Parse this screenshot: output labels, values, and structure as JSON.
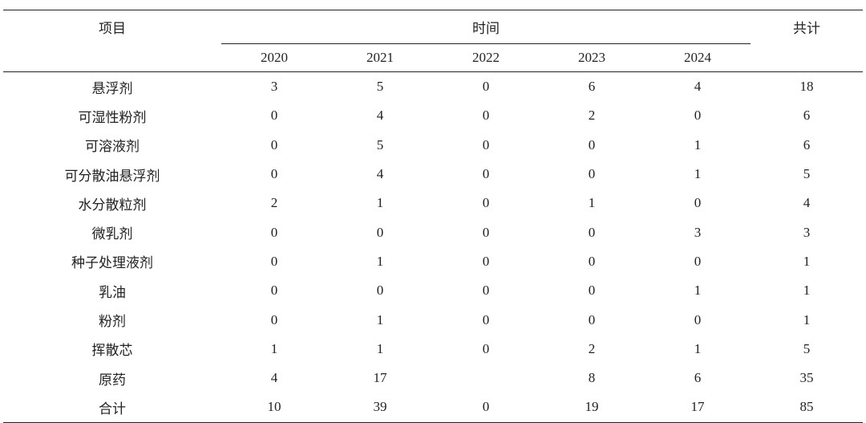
{
  "header": {
    "item_label": "项目",
    "time_label": "时间",
    "total_label": "共计",
    "years": [
      "2020",
      "2021",
      "2022",
      "2023",
      "2024"
    ]
  },
  "rows": [
    {
      "item": "悬浮剂",
      "values": [
        "3",
        "5",
        "0",
        "6",
        "4"
      ],
      "total": "18"
    },
    {
      "item": "可湿性粉剂",
      "values": [
        "0",
        "4",
        "0",
        "2",
        "0"
      ],
      "total": "6"
    },
    {
      "item": "可溶液剂",
      "values": [
        "0",
        "5",
        "0",
        "0",
        "1"
      ],
      "total": "6"
    },
    {
      "item": "可分散油悬浮剂",
      "values": [
        "0",
        "4",
        "0",
        "0",
        "1"
      ],
      "total": "5"
    },
    {
      "item": "水分散粒剂",
      "values": [
        "2",
        "1",
        "0",
        "1",
        "0"
      ],
      "total": "4"
    },
    {
      "item": "微乳剂",
      "values": [
        "0",
        "0",
        "0",
        "0",
        "3"
      ],
      "total": "3"
    },
    {
      "item": "种子处理液剂",
      "values": [
        "0",
        "1",
        "0",
        "0",
        "0"
      ],
      "total": "1"
    },
    {
      "item": "乳油",
      "values": [
        "0",
        "0",
        "0",
        "0",
        "1"
      ],
      "total": "1"
    },
    {
      "item": "粉剂",
      "values": [
        "0",
        "1",
        "0",
        "0",
        "0"
      ],
      "total": "1"
    },
    {
      "item": "挥散芯",
      "values": [
        "1",
        "1",
        "0",
        "2",
        "1"
      ],
      "total": "5"
    },
    {
      "item": "原药",
      "values": [
        "4",
        "17",
        "",
        "8",
        "6"
      ],
      "total": "35"
    },
    {
      "item": "合计",
      "values": [
        "10",
        "39",
        "0",
        "19",
        "17"
      ],
      "total": "85"
    }
  ]
}
